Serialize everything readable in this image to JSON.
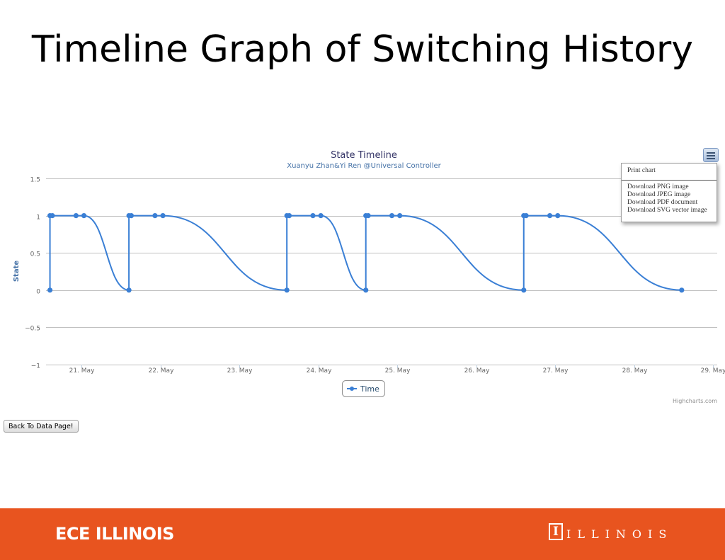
{
  "slide": {
    "title": "Timeline Graph of Switching History"
  },
  "chart": {
    "title": "State Timeline",
    "subtitle": "Xuanyu Zhan&Yi Ren @Universal Controller",
    "credits": "Highcharts.com",
    "legend_label": "Time",
    "menu_icon": "hamburger-menu-icon",
    "line_color": "#3a7fd5"
  },
  "export_menu": {
    "print": "Print chart",
    "png": "Download PNG image",
    "jpeg": "Download JPEG image",
    "pdf": "Download PDF document",
    "svg": "Download SVG vector image"
  },
  "back_button": {
    "label": "Back To Data Page!"
  },
  "footer": {
    "left_text": "ECE ILLINOIS",
    "logo_letter": "I",
    "right_text": "ILLINOIS",
    "background": "#e8541f"
  },
  "chart_data": {
    "type": "line",
    "title": "State Timeline",
    "subtitle": "Xuanyu Zhan&Yi Ren @Universal Controller",
    "xlabel": "",
    "ylabel": "State",
    "xlim": [
      20.55,
      29.05
    ],
    "ylim": [
      -1,
      1.5
    ],
    "yticks": [
      -1,
      -0.5,
      0,
      0.5,
      1,
      1.5
    ],
    "ytick_labels": [
      "−1",
      "−0.5",
      "0",
      "0.5",
      "1",
      "1.5"
    ],
    "xticks": [
      21,
      22,
      23,
      24,
      25,
      26,
      27,
      28,
      29
    ],
    "xtick_labels": [
      "21. May",
      "22. May",
      "23. May",
      "24. May",
      "25. May",
      "26. May",
      "27. May",
      "28. May",
      "29. May"
    ],
    "grid": true,
    "legend": "bottom-center",
    "series": [
      {
        "name": "Time",
        "x": [
          20.6,
          20.6,
          20.63,
          20.93,
          21.03,
          21.6,
          21.6,
          21.63,
          21.93,
          22.03,
          23.6,
          23.6,
          23.63,
          23.93,
          24.03,
          24.6,
          24.6,
          24.63,
          24.93,
          25.03,
          26.6,
          26.6,
          26.63,
          26.93,
          27.03,
          28.6
        ],
        "y": [
          0,
          1,
          1,
          1,
          1,
          0,
          1,
          1,
          1,
          1,
          0,
          1,
          1,
          1,
          1,
          0,
          1,
          1,
          1,
          1,
          0,
          1,
          1,
          1,
          1,
          0
        ]
      }
    ]
  }
}
